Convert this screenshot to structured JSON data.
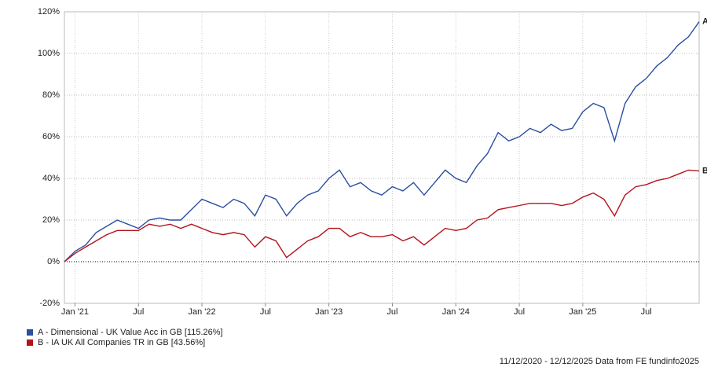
{
  "chart_data": {
    "type": "line",
    "x": [
      "2020-12",
      "2021-01",
      "2021-02",
      "2021-03",
      "2021-04",
      "2021-05",
      "2021-06",
      "2021-07",
      "2021-08",
      "2021-09",
      "2021-10",
      "2021-11",
      "2021-12",
      "2022-01",
      "2022-02",
      "2022-03",
      "2022-04",
      "2022-05",
      "2022-06",
      "2022-07",
      "2022-08",
      "2022-09",
      "2022-10",
      "2022-11",
      "2022-12",
      "2023-01",
      "2023-02",
      "2023-03",
      "2023-04",
      "2023-05",
      "2023-06",
      "2023-07",
      "2023-08",
      "2023-09",
      "2023-10",
      "2023-11",
      "2023-12",
      "2024-01",
      "2024-02",
      "2024-03",
      "2024-04",
      "2024-05",
      "2024-06",
      "2024-07",
      "2024-08",
      "2024-09",
      "2024-10",
      "2024-11",
      "2024-12",
      "2025-01",
      "2025-02",
      "2025-03",
      "2025-04",
      "2025-05",
      "2025-06",
      "2025-07",
      "2025-08",
      "2025-09",
      "2025-10",
      "2025-11",
      "2025-12"
    ],
    "series": [
      {
        "name": "A - Dimensional - UK Value Acc in GB [115.26%]",
        "end_label": "A",
        "color": "#2a4fa0",
        "values": [
          0,
          5,
          8,
          14,
          17,
          20,
          18,
          16,
          20,
          21,
          20,
          20,
          25,
          30,
          28,
          26,
          30,
          28,
          22,
          32,
          30,
          22,
          28,
          32,
          34,
          40,
          44,
          36,
          38,
          34,
          32,
          36,
          34,
          38,
          32,
          38,
          44,
          40,
          38,
          46,
          52,
          62,
          58,
          60,
          64,
          62,
          66,
          63,
          64,
          72,
          76,
          74,
          58,
          76,
          84,
          88,
          94,
          98,
          104,
          108,
          115.26
        ]
      },
      {
        "name": "B - IA UK All Companies TR in GB [43.56%]",
        "end_label": "B",
        "color": "#b5121b",
        "values": [
          0,
          4,
          7,
          10,
          13,
          15,
          15,
          15,
          18,
          17,
          18,
          16,
          18,
          16,
          14,
          13,
          14,
          13,
          7,
          12,
          10,
          2,
          6,
          10,
          12,
          16,
          16,
          12,
          14,
          12,
          12,
          13,
          10,
          12,
          8,
          12,
          16,
          15,
          16,
          20,
          21,
          25,
          26,
          27,
          28,
          28,
          28,
          27,
          28,
          31,
          33,
          30,
          22,
          32,
          36,
          37,
          39,
          40,
          42,
          44,
          43.56
        ]
      }
    ],
    "xlim": [
      "2020-12",
      "2025-12"
    ],
    "xticks": [
      {
        "value": "2021-01",
        "label": "Jan '21"
      },
      {
        "value": "2021-07",
        "label": "Jul"
      },
      {
        "value": "2022-01",
        "label": "Jan '22"
      },
      {
        "value": "2022-07",
        "label": "Jul"
      },
      {
        "value": "2023-01",
        "label": "Jan '23"
      },
      {
        "value": "2023-07",
        "label": "Jul"
      },
      {
        "value": "2024-01",
        "label": "Jan '24"
      },
      {
        "value": "2024-07",
        "label": "Jul"
      },
      {
        "value": "2025-01",
        "label": "Jan '25"
      },
      {
        "value": "2025-07",
        "label": "Jul"
      }
    ],
    "ylim": [
      -20,
      120
    ],
    "yticks": [
      {
        "value": -20,
        "label": "-20%"
      },
      {
        "value": 0,
        "label": "0%"
      },
      {
        "value": 20,
        "label": "20%"
      },
      {
        "value": 40,
        "label": "40%"
      },
      {
        "value": 60,
        "label": "60%"
      },
      {
        "value": 80,
        "label": "80%"
      },
      {
        "value": 100,
        "label": "100%"
      },
      {
        "value": 120,
        "label": "120%"
      }
    ],
    "grid": true,
    "footnote": "11/12/2020 - 12/12/2025 Data from FE fundinfo2025"
  }
}
